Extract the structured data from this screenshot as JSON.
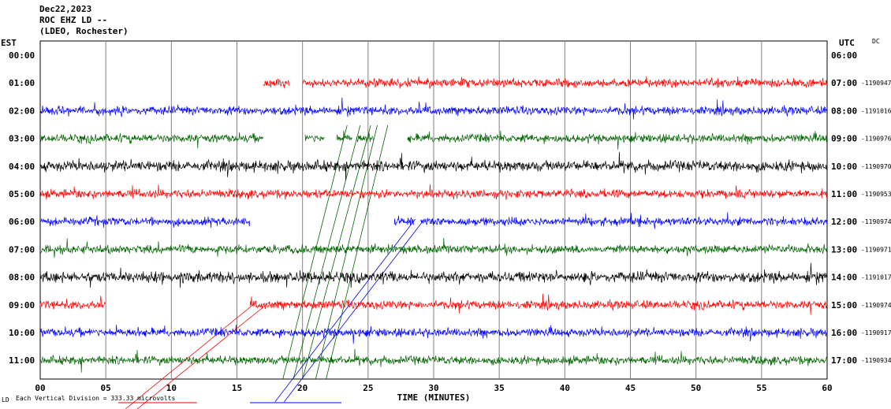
{
  "header": {
    "date": "Dec22,2023",
    "station": "ROC EHZ LD --",
    "network": "(LDEO, Rochester)",
    "left_zone": "EST",
    "right_zone": "UTC",
    "dc_label": "DC",
    "footer_mark": "LD",
    "scale_note": "Each Vertical Division =  333.33 microvolts"
  },
  "chart_data": {
    "type": "line",
    "title": "ROC EHZ LD --",
    "xlabel": "TIME (MINUTES)",
    "xlim": [
      0,
      60
    ],
    "x_ticks": [
      "00",
      "05",
      "10",
      "15",
      "20",
      "25",
      "30",
      "35",
      "40",
      "45",
      "50",
      "55",
      "60"
    ],
    "grid": true,
    "colors": [
      "#ff0000",
      "#0000ff",
      "#006400",
      "#000000"
    ],
    "rows": [
      {
        "left": "00:00",
        "right": "06:00",
        "dc": "",
        "color": "",
        "segments": []
      },
      {
        "left": "01:00",
        "right": "07:00",
        "dc": "-1190947",
        "color": "#ff0000",
        "segments": [
          [
            17,
            19
          ],
          [
            20,
            60
          ]
        ]
      },
      {
        "left": "02:00",
        "right": "08:00",
        "dc": "-1191016",
        "color": "#0000ff",
        "segments": [
          [
            0,
            60
          ]
        ]
      },
      {
        "left": "03:00",
        "right": "09:00",
        "dc": "-1190976",
        "color": "#006400",
        "segments": [
          [
            0,
            17
          ],
          [
            20.2,
            21.7
          ],
          [
            22.6,
            23.8
          ],
          [
            24.1,
            25.4
          ],
          [
            28,
            60
          ]
        ]
      },
      {
        "left": "04:00",
        "right": "10:00",
        "dc": "-1190970",
        "color": "#000000",
        "segments": [
          [
            0,
            60
          ]
        ]
      },
      {
        "left": "05:00",
        "right": "11:00",
        "dc": "-1190953",
        "color": "#ff0000",
        "segments": [
          [
            0,
            60
          ]
        ]
      },
      {
        "left": "06:00",
        "right": "12:00",
        "dc": "-1190974",
        "color": "#0000ff",
        "segments": [
          [
            0,
            16
          ],
          [
            27,
            28.5
          ],
          [
            29,
            60
          ]
        ]
      },
      {
        "left": "07:00",
        "right": "13:00",
        "dc": "-1190971",
        "color": "#006400",
        "segments": [
          [
            0,
            60
          ]
        ]
      },
      {
        "left": "08:00",
        "right": "14:00",
        "dc": "-1191017",
        "color": "#000000",
        "segments": [
          [
            0,
            60
          ]
        ]
      },
      {
        "left": "09:00",
        "right": "15:00",
        "dc": "-1190974",
        "color": "#ff0000",
        "segments": [
          [
            0,
            5
          ],
          [
            16,
            60
          ]
        ]
      },
      {
        "left": "10:00",
        "right": "16:00",
        "dc": "-1190917",
        "color": "#0000ff",
        "segments": [
          [
            0,
            60
          ]
        ]
      },
      {
        "left": "11:00",
        "right": "17:00",
        "dc": "-1190934",
        "color": "#006400",
        "segments": [
          [
            0,
            60
          ]
        ]
      }
    ]
  }
}
